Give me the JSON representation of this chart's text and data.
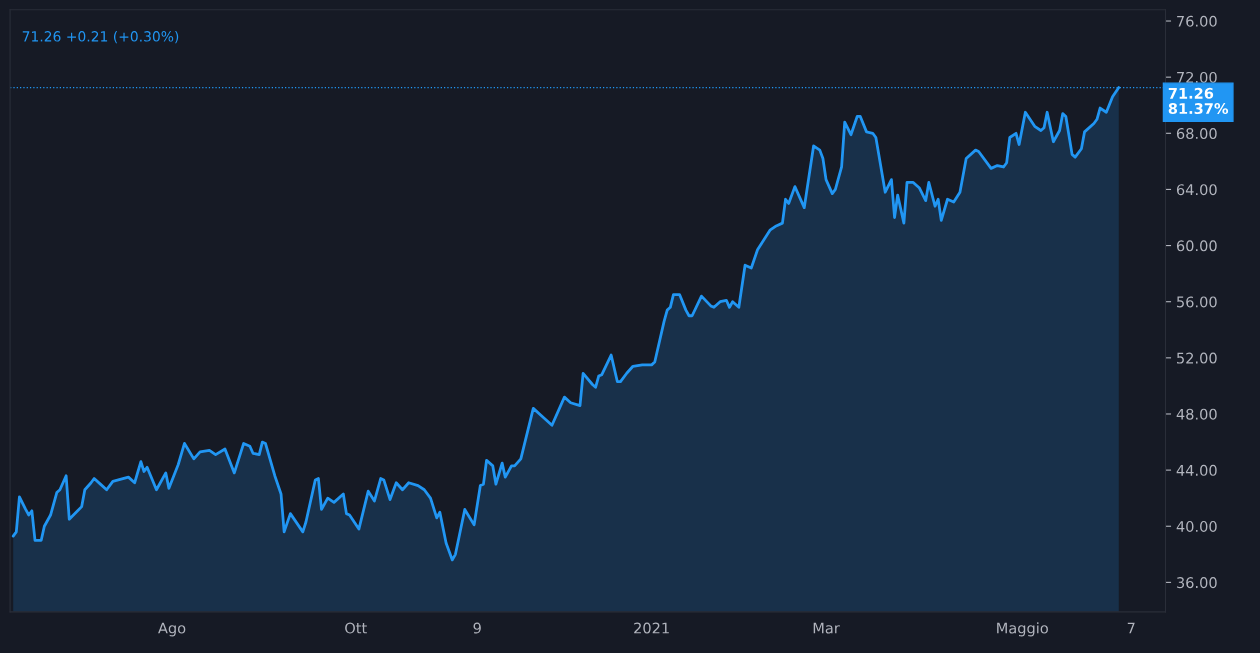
{
  "chart_data": {
    "type": "area",
    "annotations": [
      "71.26 +0.21 (+0.30%)"
    ],
    "x": [
      "2020-06-13",
      "2020-06-14",
      "2020-06-15",
      "2020-06-17",
      "2020-06-18",
      "2020-06-19",
      "2020-06-20",
      "2020-06-22",
      "2020-06-23",
      "2020-06-25",
      "2020-06-27",
      "2020-06-28",
      "2020-06-30",
      "2020-07-01",
      "2020-07-05",
      "2020-07-06",
      "2020-07-08",
      "2020-07-09",
      "2020-07-11",
      "2020-07-13",
      "2020-07-15",
      "2020-07-20",
      "2020-07-22",
      "2020-07-24",
      "2020-07-25",
      "2020-07-26",
      "2020-07-29",
      "2020-08-01",
      "2020-08-02",
      "2020-08-05",
      "2020-08-07",
      "2020-08-10",
      "2020-08-12",
      "2020-08-15",
      "2020-08-17",
      "2020-08-20",
      "2020-08-23",
      "2020-08-26",
      "2020-08-28",
      "2020-08-29",
      "2020-08-31",
      "2020-09-01",
      "2020-09-02",
      "2020-09-05",
      "2020-09-07",
      "2020-09-08",
      "2020-09-10",
      "2020-09-14",
      "2020-09-15",
      "2020-09-18",
      "2020-09-19",
      "2020-09-20",
      "2020-09-22",
      "2020-09-24",
      "2020-09-27",
      "2020-09-28",
      "2020-09-29",
      "2020-10-02",
      "2020-10-05",
      "2020-10-07",
      "2020-10-09",
      "2020-10-10",
      "2020-10-12",
      "2020-10-14",
      "2020-10-16",
      "2020-10-18",
      "2020-10-21",
      "2020-10-23",
      "2020-10-25",
      "2020-10-27",
      "2020-10-28",
      "2020-10-30",
      "2020-11-01",
      "2020-11-02",
      "2020-11-05",
      "2020-11-08",
      "2020-11-10",
      "2020-11-11",
      "2020-11-12",
      "2020-11-14",
      "2020-11-15",
      "2020-11-17",
      "2020-11-18",
      "2020-11-20",
      "2020-11-21",
      "2020-11-23",
      "2020-11-27",
      "2020-11-29",
      "2020-12-03",
      "2020-12-07",
      "2020-12-09",
      "2020-12-12",
      "2020-12-13",
      "2020-12-16",
      "2020-12-17",
      "2020-12-18",
      "2020-12-19",
      "2020-12-22",
      "2020-12-24",
      "2020-12-25",
      "2020-12-27",
      "2020-12-29",
      "2021-01-01",
      "2021-01-04",
      "2021-01-05",
      "2021-01-08",
      "2021-01-09",
      "2021-01-10",
      "2021-01-11",
      "2021-01-13",
      "2021-01-15",
      "2021-01-16",
      "2021-01-17",
      "2021-01-20",
      "2021-01-23",
      "2021-01-24",
      "2021-01-26",
      "2021-01-28",
      "2021-01-29",
      "2021-01-30",
      "2021-02-01",
      "2021-02-03",
      "2021-02-05",
      "2021-02-07",
      "2021-02-09",
      "2021-02-11",
      "2021-02-13",
      "2021-02-15",
      "2021-02-16",
      "2021-02-17",
      "2021-02-19",
      "2021-02-22",
      "2021-02-25",
      "2021-02-27",
      "2021-02-28",
      "2021-03-01",
      "2021-03-03",
      "2021-03-04",
      "2021-03-06",
      "2021-03-07",
      "2021-03-09",
      "2021-03-11",
      "2021-03-12",
      "2021-03-14",
      "2021-03-16",
      "2021-03-17",
      "2021-03-20",
      "2021-03-22",
      "2021-03-23",
      "2021-03-24",
      "2021-03-26",
      "2021-03-27",
      "2021-03-29",
      "2021-03-31",
      "2021-04-02",
      "2021-04-03",
      "2021-04-05",
      "2021-04-06",
      "2021-04-07",
      "2021-04-09",
      "2021-04-11",
      "2021-04-13",
      "2021-04-15",
      "2021-04-18",
      "2021-04-19",
      "2021-04-23",
      "2021-04-25",
      "2021-04-27",
      "2021-04-28",
      "2021-04-29",
      "2021-05-01",
      "2021-05-02",
      "2021-05-04",
      "2021-05-07",
      "2021-05-09",
      "2021-05-10",
      "2021-05-11",
      "2021-05-13",
      "2021-05-15",
      "2021-05-16",
      "2021-05-17",
      "2021-05-19",
      "2021-05-20",
      "2021-05-22",
      "2021-05-23",
      "2021-05-26",
      "2021-05-27",
      "2021-05-28",
      "2021-05-30",
      "2021-06-01",
      "2021-06-03"
    ],
    "series": [
      {
        "color": "#2196f3",
        "values": [
          39.3,
          39.6,
          42.1,
          41.2,
          40.8,
          41.1,
          39.0,
          39.0,
          40.0,
          40.8,
          42.4,
          42.6,
          43.6,
          40.5,
          41.4,
          42.6,
          43.1,
          43.4,
          43.0,
          42.6,
          43.2,
          43.5,
          43.1,
          44.6,
          43.9,
          44.2,
          42.6,
          43.8,
          42.7,
          44.4,
          45.9,
          44.8,
          45.3,
          45.4,
          45.1,
          45.5,
          43.8,
          45.9,
          45.7,
          45.2,
          45.1,
          46.0,
          45.9,
          43.6,
          42.3,
          39.6,
          40.9,
          39.6,
          40.3,
          43.3,
          43.4,
          41.2,
          42.0,
          41.7,
          42.3,
          40.9,
          40.8,
          39.8,
          42.5,
          41.8,
          43.4,
          43.3,
          41.9,
          43.1,
          42.6,
          43.1,
          42.9,
          42.6,
          42.0,
          40.6,
          41.0,
          38.8,
          37.6,
          38.0,
          41.2,
          40.1,
          42.9,
          43.0,
          44.7,
          44.3,
          43.0,
          44.5,
          43.5,
          44.3,
          44.3,
          44.8,
          48.4,
          48.0,
          47.2,
          49.2,
          48.8,
          48.6,
          50.9,
          50.1,
          49.9,
          50.7,
          50.8,
          52.2,
          50.3,
          50.3,
          50.9,
          51.4,
          51.5,
          51.5,
          51.7,
          54.6,
          55.4,
          55.6,
          56.5,
          56.5,
          55.4,
          55.0,
          55.0,
          56.4,
          55.7,
          55.6,
          56.0,
          56.1,
          55.6,
          56.0,
          55.6,
          58.6,
          58.4,
          59.7,
          60.4,
          61.1,
          61.4,
          61.6,
          63.3,
          63.0,
          64.2,
          62.7,
          67.1,
          66.8,
          66.2,
          64.7,
          63.7,
          64.0,
          65.6,
          68.8,
          67.9,
          69.2,
          69.2,
          68.1,
          68.0,
          67.7,
          63.8,
          64.7,
          62.0,
          63.6,
          61.6,
          64.5,
          64.5,
          64.1,
          63.2,
          64.5,
          62.8,
          63.3,
          61.8,
          63.3,
          63.1,
          63.8,
          66.2,
          66.8,
          66.7,
          65.5,
          65.7,
          65.6,
          65.9,
          67.7,
          68.0,
          67.2,
          69.5,
          68.5,
          68.2,
          68.4,
          69.5,
          67.4,
          68.2,
          69.4,
          69.2,
          66.5,
          66.3,
          66.9,
          68.1,
          68.7,
          69.0,
          69.8,
          69.5,
          70.6,
          71.26
        ]
      }
    ],
    "xlim": [
      "2020-06-12",
      "2021-06-18"
    ],
    "xticks": [
      {
        "value": "2020-08-03",
        "label": "Ago"
      },
      {
        "value": "2020-10-01",
        "label": "Ott"
      },
      {
        "value": "2020-11-09",
        "label": "9"
      },
      {
        "value": "2021-01-04",
        "label": "2021"
      },
      {
        "value": "2021-03-01",
        "label": "Mar"
      },
      {
        "value": "2021-05-03",
        "label": "Maggio"
      },
      {
        "value": "2021-06-07",
        "label": "7"
      }
    ],
    "ylim": [
      33.9,
      76.8
    ],
    "yticks": [
      {
        "value": 36,
        "label": "36.00"
      },
      {
        "value": 40,
        "label": "40.00"
      },
      {
        "value": 44,
        "label": "44.00"
      },
      {
        "value": 48,
        "label": "48.00"
      },
      {
        "value": 52,
        "label": "52.00"
      },
      {
        "value": 56,
        "label": "56.00"
      },
      {
        "value": 60,
        "label": "60.00"
      },
      {
        "value": 64,
        "label": "64.00"
      },
      {
        "value": 68,
        "label": "68.00"
      },
      {
        "value": 72,
        "label": "72.00"
      },
      {
        "value": 76,
        "label": "76.00"
      }
    ],
    "ref_lines": [
      {
        "axis": "y",
        "value": 71.26,
        "label": "71.26\n81.37%",
        "color": "#2196f3",
        "line_style": "dotted"
      }
    ],
    "grid": false,
    "legend": false
  }
}
